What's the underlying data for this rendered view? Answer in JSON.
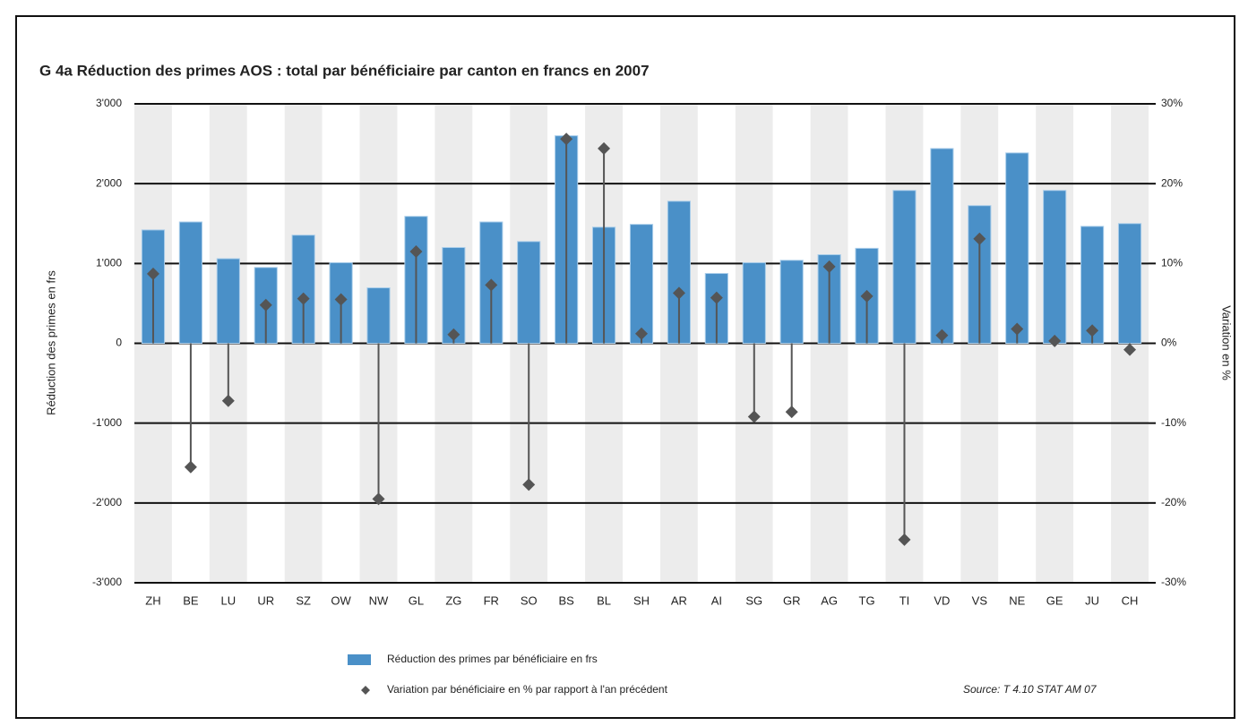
{
  "chart_data": {
    "type": "bar",
    "title": "G 4a  Réduction des primes AOS : total par bénéficiaire par canton en francs en 2007",
    "ylabel": "Réduction des primes en frs",
    "y2label": "Variation en %",
    "source": "Source: T 4.10  STAT AM 07",
    "categories": [
      "ZH",
      "BE",
      "LU",
      "UR",
      "SZ",
      "OW",
      "NW",
      "GL",
      "ZG",
      "FR",
      "SO",
      "BS",
      "BL",
      "SH",
      "AR",
      "AI",
      "SG",
      "GR",
      "AG",
      "TG",
      "TI",
      "VD",
      "VS",
      "NE",
      "GE",
      "JU",
      "CH"
    ],
    "series": [
      {
        "name": "Réduction des primes par bénéficiaire en frs",
        "type": "bar",
        "color": "#4a90c8",
        "values": [
          1420,
          1520,
          1060,
          950,
          1355,
          1010,
          695,
          1590,
          1200,
          1520,
          1275,
          2600,
          1455,
          1490,
          1780,
          875,
          1010,
          1040,
          1110,
          1190,
          1915,
          2440,
          1725,
          2385,
          1915,
          1465,
          1500
        ]
      },
      {
        "name": "Variation par bénéficiaire en % par rapport à l'an précédent",
        "type": "lollipop",
        "color": "#555555",
        "axis": "y2",
        "values": [
          8.7,
          -15.5,
          -7.2,
          4.8,
          5.6,
          5.5,
          -19.5,
          11.5,
          1.1,
          7.3,
          -17.7,
          25.6,
          24.4,
          1.2,
          6.3,
          5.7,
          -9.2,
          -8.6,
          9.6,
          5.9,
          -24.6,
          1.0,
          13.1,
          1.8,
          0.3,
          1.6,
          -0.8
        ]
      }
    ],
    "ylim": [
      -3000,
      3000
    ],
    "yticks": [
      {
        "value": 3000,
        "label": "3'000"
      },
      {
        "value": 2000,
        "label": "2'000"
      },
      {
        "value": 1000,
        "label": "1'000"
      },
      0,
      {
        "value": -1000,
        "label": "-1'000"
      },
      {
        "value": -2000,
        "label": "-2'000"
      },
      {
        "value": -3000,
        "label": "-3'000"
      }
    ],
    "y2lim": [
      -30,
      30
    ],
    "y2ticks": [
      {
        "value": 30,
        "label": "30%"
      },
      {
        "value": 20,
        "label": "20%"
      },
      {
        "value": 10,
        "label": "10%"
      },
      {
        "value": 0,
        "label": "0%"
      },
      {
        "value": -10,
        "label": "-10%"
      },
      {
        "value": -20,
        "label": "-20%"
      },
      {
        "value": -30,
        "label": "-30%"
      }
    ],
    "grid": true
  }
}
